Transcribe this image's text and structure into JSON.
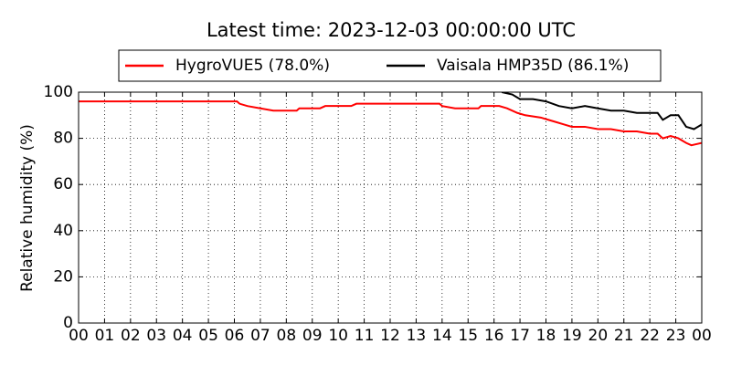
{
  "chart_data": {
    "type": "line",
    "title": "Latest time: 2023-12-03 00:00:00 UTC",
    "y_label": "Relative humidity (%)",
    "series": [
      {
        "name": "HygroVUE5 (78.0%)",
        "color": "#ff0000",
        "x": [
          0,
          6.1,
          6.2,
          6.5,
          7,
          7.5,
          8.4,
          8.5,
          9.3,
          9.5,
          10.5,
          10.7,
          13.9,
          14,
          14.5,
          15.4,
          15.5,
          16.2,
          16.5,
          16.9,
          17.2,
          17.8,
          18.1,
          18.4,
          18.7,
          19,
          19.5,
          20,
          20.5,
          21,
          21.5,
          22,
          22.3,
          22.5,
          22.8,
          23.1,
          23.4,
          23.6,
          24
        ],
        "values": [
          96,
          96,
          95,
          94,
          93,
          92,
          92,
          93,
          93,
          94,
          94,
          95,
          95,
          94,
          93,
          93,
          94,
          94,
          93,
          91,
          90,
          89,
          88,
          87,
          86,
          85,
          85,
          84,
          84,
          83,
          83,
          82,
          82,
          80,
          81,
          80,
          78,
          77,
          78
        ]
      },
      {
        "name": "Vaisala HMP35D (86.1%)",
        "color": "#000000",
        "x": [
          16.3,
          16.7,
          17,
          17.5,
          18,
          18.5,
          19,
          19.5,
          20,
          20.5,
          21,
          21.5,
          22,
          22.3,
          22.5,
          22.8,
          23.1,
          23.4,
          23.7,
          24
        ],
        "values": [
          100,
          99,
          97,
          97,
          96,
          94,
          93,
          94,
          93,
          92,
          92,
          91,
          91,
          91,
          88,
          90,
          90,
          85,
          84,
          86
        ]
      }
    ],
    "xlim": [
      0,
      24
    ],
    "xticks": [
      {
        "value": 0,
        "label": "00"
      },
      {
        "value": 1,
        "label": "01"
      },
      {
        "value": 2,
        "label": "02"
      },
      {
        "value": 3,
        "label": "03"
      },
      {
        "value": 4,
        "label": "04"
      },
      {
        "value": 5,
        "label": "05"
      },
      {
        "value": 6,
        "label": "06"
      },
      {
        "value": 7,
        "label": "07"
      },
      {
        "value": 8,
        "label": "08"
      },
      {
        "value": 9,
        "label": "09"
      },
      10,
      11,
      12,
      13,
      14,
      15,
      16,
      17,
      18,
      19,
      20,
      21,
      22,
      23,
      {
        "value": 24,
        "label": "00"
      }
    ],
    "ylim": [
      0,
      100
    ],
    "yticks": [
      0,
      20,
      40,
      60,
      80,
      100
    ],
    "grid": true
  }
}
